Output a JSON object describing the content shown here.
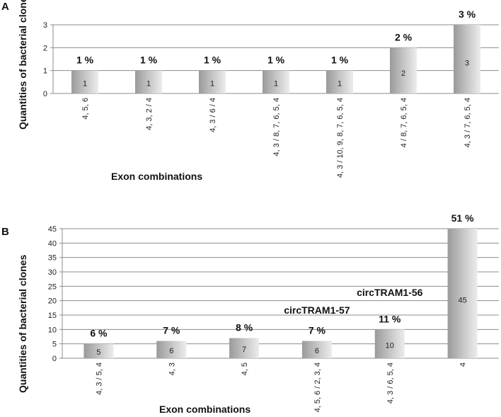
{
  "chart_data": [
    {
      "panel": "A",
      "type": "bar",
      "categories": [
        "4, 5, 6",
        "4, 3, 2 / 4",
        "4, 3 / 6 / 4",
        "4, 3 / 8, 7, 6, 5, 4",
        "4, 3 / 10, 9, 8, 7, 6, 5, 4",
        "4 / 8, 7, 6, 5, 4",
        "4, 3 / 7, 6, 5, 4"
      ],
      "values": [
        1,
        1,
        1,
        1,
        1,
        2,
        3
      ],
      "value_labels": [
        "1",
        "1",
        "1",
        "1",
        "1",
        "2",
        "3"
      ],
      "percent_labels": [
        "1 %",
        "1 %",
        "1 %",
        "1 %",
        "1 %",
        "2 %",
        "3 %"
      ],
      "xlabel": "Exon combinations",
      "ylabel": "Quantities of bacterial clones",
      "ylim": [
        0,
        3
      ],
      "yticks": [
        0,
        1,
        2,
        3
      ],
      "grid": true,
      "legend": "none"
    },
    {
      "panel": "B",
      "type": "bar",
      "categories": [
        "4, 3 / 5, 4",
        "4, 3",
        "4, 5",
        "4, 5, 6 / 2, 3, 4",
        "4, 3 / 6, 5, 4",
        "4"
      ],
      "values": [
        5,
        6,
        7,
        6,
        10,
        45
      ],
      "value_labels": [
        "5",
        "6",
        "7",
        "6",
        "10",
        "45"
      ],
      "percent_labels": [
        "6 %",
        "7 %",
        "8 %",
        "7 %",
        "11 %",
        "51 %"
      ],
      "annotations": [
        {
          "text": "circTRAM1-57",
          "category_index": 3
        },
        {
          "text": "circTRAM1-56",
          "category_index": 4
        }
      ],
      "xlabel": "Exon combinations",
      "ylabel": "Quantities of bacterial clones",
      "ylim": [
        0,
        45
      ],
      "yticks": [
        0,
        5,
        10,
        15,
        20,
        25,
        30,
        35,
        40,
        45
      ],
      "grid": true,
      "legend": "none"
    }
  ]
}
